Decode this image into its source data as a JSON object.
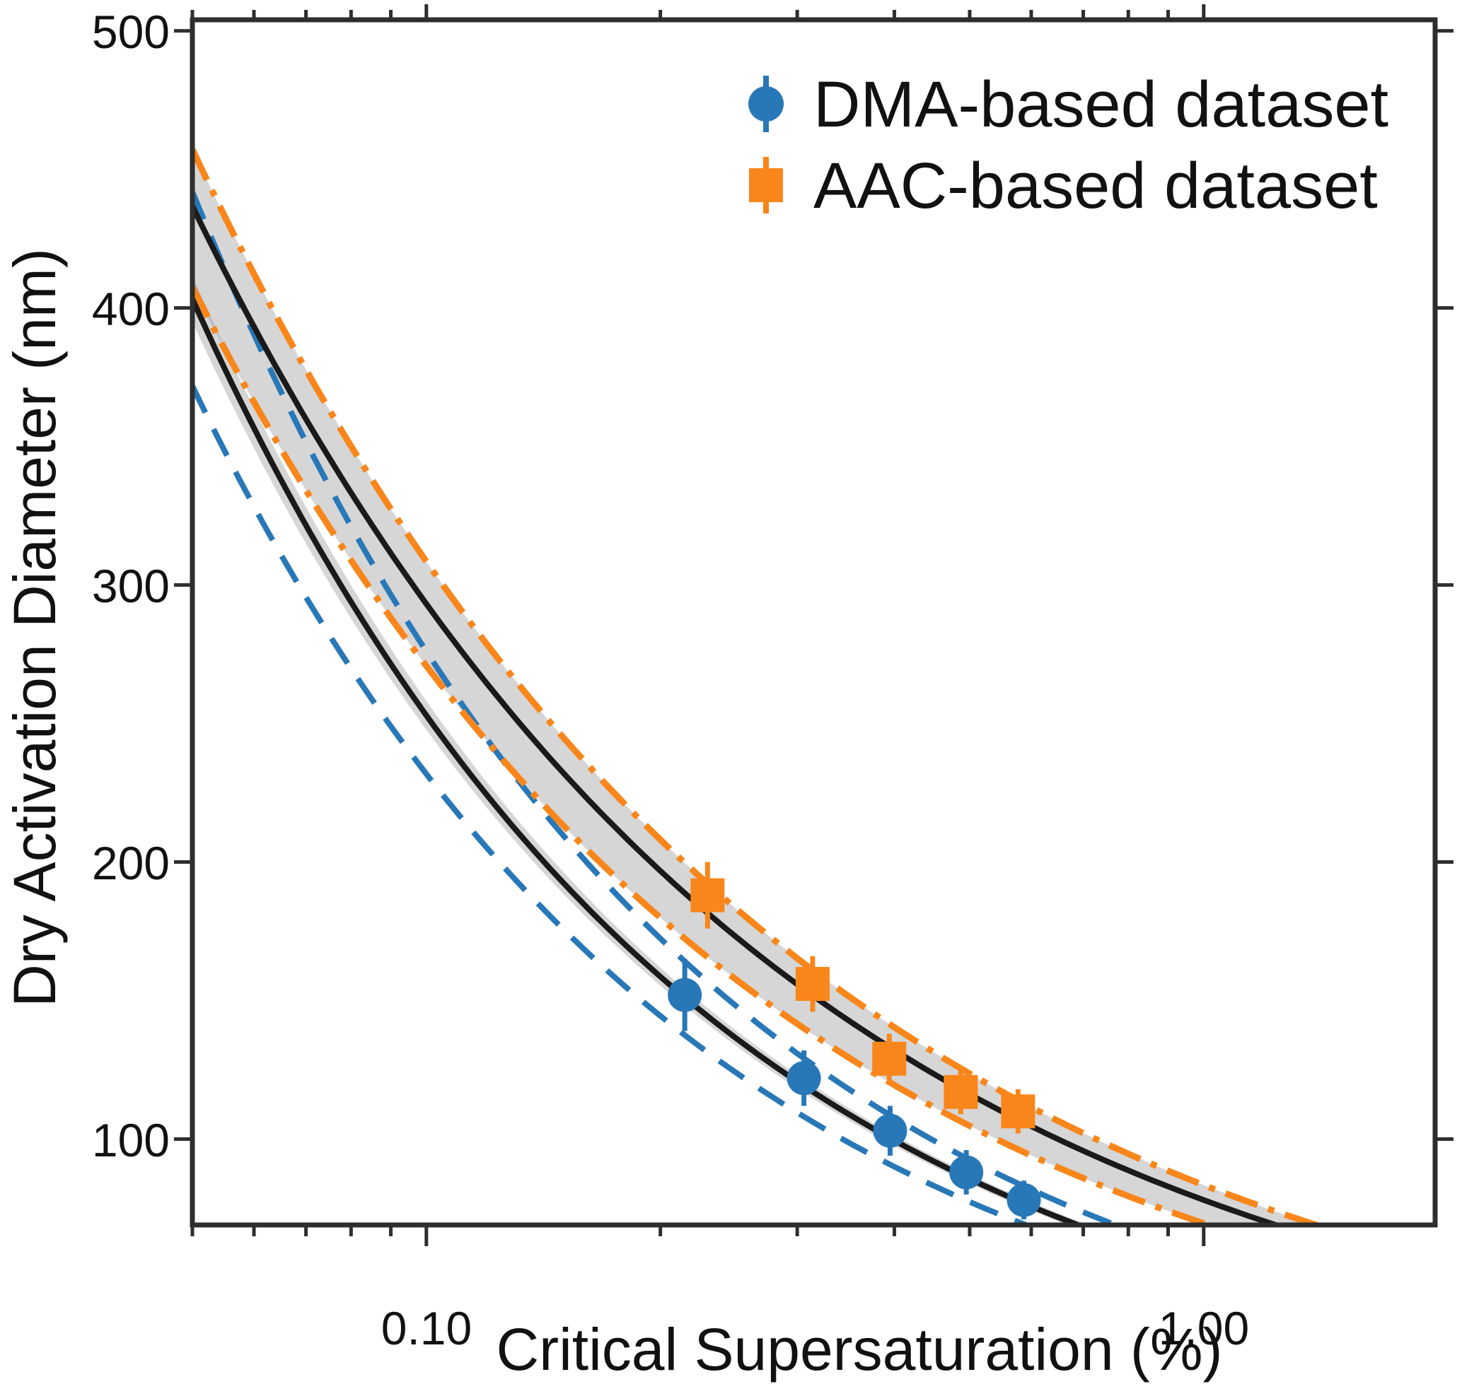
{
  "figure": {
    "kind": "scientific scatter plot with power-law fits and confidence bands",
    "background": "#ffffff"
  },
  "colors": {
    "dma_blue": "#2878b8",
    "aac_orange": "#f8861b",
    "fit_black": "#1a1a1a",
    "band_fill": "#777777",
    "band_opacity": 0.3,
    "spine": "#2e2e2e",
    "text": "#111111"
  },
  "axes": {
    "xlabel": "Critical Supersaturation (%)",
    "ylabel": "Dry Activation Diameter (nm)",
    "x": {
      "scale": "log",
      "min": 0.05,
      "max": 1.985,
      "major_ticks": [
        0.1,
        1.0
      ],
      "major_labels": [
        "0.10",
        "1.00"
      ],
      "minor_ticks": [
        0.05,
        0.06,
        0.07,
        0.08,
        0.09,
        0.2,
        0.3,
        0.4,
        0.5,
        0.6,
        0.7,
        0.8,
        0.9
      ]
    },
    "y": {
      "scale": "linear",
      "min": 69,
      "max": 504,
      "major_ticks": [
        100,
        200,
        300,
        400,
        500
      ],
      "major_labels": [
        "100",
        "200",
        "300",
        "400",
        "500"
      ]
    }
  },
  "legend": {
    "items": [
      {
        "label": "DMA-based dataset",
        "marker": "circle",
        "color_key": "dma_blue"
      },
      {
        "label": "AAC-based dataset",
        "marker": "square",
        "color_key": "aac_orange"
      }
    ]
  },
  "chart_data": {
    "type": "scatter",
    "title": "",
    "xlabel": "Critical Supersaturation (%)",
    "ylabel": "Dry Activation Diameter (nm)",
    "xscale": "log",
    "yscale": "linear",
    "xlim": [
      0.05,
      1.985
    ],
    "ylim": [
      69,
      504
    ],
    "grid": false,
    "legend_position": "upper right, no frame",
    "series": [
      {
        "name": "DMA-based dataset",
        "marker": "circle",
        "color": "#2878b8",
        "x": [
          0.215,
          0.306,
          0.395,
          0.495,
          0.587
        ],
        "y": [
          152,
          122,
          103,
          88,
          78
        ],
        "yerr": [
          13,
          10,
          9,
          8,
          7
        ]
      },
      {
        "name": "AAC-based dataset",
        "marker": "square",
        "color": "#f8861b",
        "x": [
          0.23,
          0.314,
          0.394,
          0.487,
          0.577
        ],
        "y": [
          188,
          156,
          129,
          117,
          110
        ],
        "yerr": [
          12,
          10,
          9,
          8,
          8
        ]
      }
    ],
    "fit_curves": [
      {
        "name": "dma-best-fit",
        "model": "d = a * S^b",
        "a": 53.7,
        "b": -0.673,
        "style": "solid",
        "color": "#1a1a1a",
        "width": 8
      },
      {
        "name": "aac-best-fit",
        "model": "d = a * S^b",
        "a": 78.0,
        "b": -0.575,
        "style": "solid",
        "color": "#1a1a1a",
        "width": 8
      },
      {
        "name": "dma-lower-bound",
        "model": "d = a * S^b",
        "a": 48.2,
        "b": -0.682,
        "style": "dashed",
        "color": "#2878b8",
        "width": 8
      },
      {
        "name": "dma-upper-bound",
        "model": "d = a * S^b",
        "a": 57.8,
        "b": -0.679,
        "style": "dashed",
        "color": "#2878b8",
        "width": 8
      },
      {
        "name": "aac-lower-bound",
        "model": "d = a * S^b",
        "a": 69.6,
        "b": -0.59,
        "style": "dashdot",
        "color": "#f8861b",
        "width": 9
      },
      {
        "name": "aac-upper-bound",
        "model": "d = a * S^b",
        "a": 83.4,
        "b": -0.568,
        "style": "dashdot",
        "color": "#f8861b",
        "width": 9
      }
    ],
    "bands": [
      {
        "name": "aac-confidence-band",
        "upper_a": 83.4,
        "upper_b": -0.568,
        "lower_a": 69.6,
        "lower_b": -0.59
      },
      {
        "name": "dma-confidence-band",
        "upper_a": 54.8,
        "upper_b": -0.673,
        "lower_a": 52.6,
        "lower_b": -0.673
      }
    ]
  }
}
